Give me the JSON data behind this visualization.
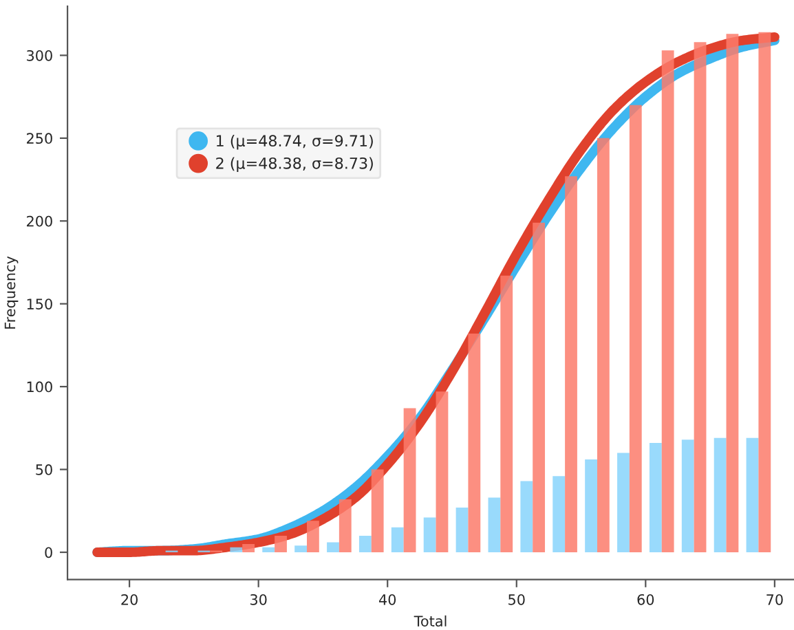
{
  "chart_data": {
    "type": "bar",
    "xlabel": "Total",
    "ylabel": "Frequency",
    "xlim": [
      15.2,
      71.5
    ],
    "xticks": [
      20,
      30,
      40,
      50,
      60,
      70
    ],
    "ylim": [
      -16.5,
      329.6
    ],
    "yticks": [
      0,
      50,
      100,
      150,
      200,
      250,
      300
    ],
    "grid": false,
    "legend": "top left",
    "x": [
      21.25,
      23.75,
      26.25,
      28.75,
      31.25,
      33.75,
      36.25,
      38.75,
      41.25,
      43.75,
      46.25,
      48.75,
      51.25,
      53.75,
      56.25,
      58.75,
      61.25,
      63.75,
      66.25,
      68.75
    ],
    "series": [
      {
        "color": "#87d4fb",
        "values": [
          0,
          1,
          1,
          3,
          3,
          4,
          6,
          10,
          15,
          21,
          27,
          33,
          43,
          46,
          56,
          60,
          66,
          68,
          69,
          69
        ]
      },
      {
        "color": "#fb7b6b",
        "values": [
          0,
          0,
          1,
          5,
          10,
          19,
          32,
          50,
          87,
          97,
          132,
          167,
          199,
          227,
          250,
          270,
          303,
          308,
          313,
          314
        ]
      },
      {
        "type": "line",
        "name": "1 (μ=48.74, σ=9.71)",
        "color": "#3fb7f0",
        "x": [
          17.5,
          20,
          22.5,
          25,
          27.5,
          30,
          32.5,
          35,
          37.5,
          40,
          42.5,
          45,
          47.5,
          50,
          52.5,
          55,
          57.5,
          60,
          62.5,
          65,
          67.5,
          70
        ],
        "values": [
          0,
          1,
          1,
          2,
          5,
          8,
          15,
          25,
          39,
          58,
          81,
          110,
          141,
          173,
          204,
          232,
          256,
          275,
          289,
          298,
          305,
          309
        ]
      },
      {
        "type": "line",
        "name": "2 (μ=48.38, σ=8.73)",
        "color": "#e0412d",
        "x": [
          17.5,
          20,
          22.5,
          25,
          27.5,
          30,
          32.5,
          35,
          37.5,
          40,
          42.5,
          45,
          47.5,
          50,
          52.5,
          55,
          57.5,
          60,
          62.5,
          65,
          67.5,
          70
        ],
        "values": [
          0,
          0,
          1,
          1,
          3,
          6,
          11,
          20,
          33,
          53,
          78,
          109,
          144,
          180,
          213,
          243,
          267,
          284,
          296,
          304,
          309,
          311
        ]
      }
    ]
  }
}
